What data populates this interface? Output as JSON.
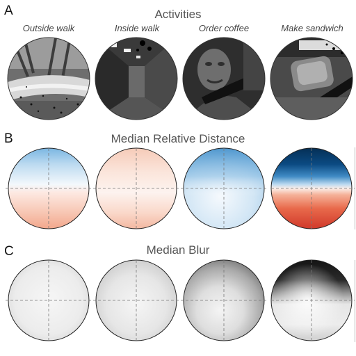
{
  "panels": {
    "a": {
      "letter": "A",
      "title": "Activities",
      "columns": [
        "Outside walk",
        "Inside walk",
        "Order coffee",
        "Make sandwich"
      ],
      "thumbnails": [
        "outdoor-path-scene",
        "hallway-scene",
        "person-face-scene",
        "sandwich-making-scene"
      ]
    },
    "b": {
      "letter": "B",
      "title": "Median Relative Distance",
      "colormap": {
        "near": "#2f7fc4",
        "far": "#e0563b",
        "mid": "#ffffff",
        "deep_near": "#06365f",
        "deep_far": "#d8402c"
      }
    },
    "c": {
      "letter": "C",
      "title": "Median Blur",
      "colormap": {
        "sharp": "#f4f4f4",
        "blurred": "#161616"
      }
    }
  }
}
